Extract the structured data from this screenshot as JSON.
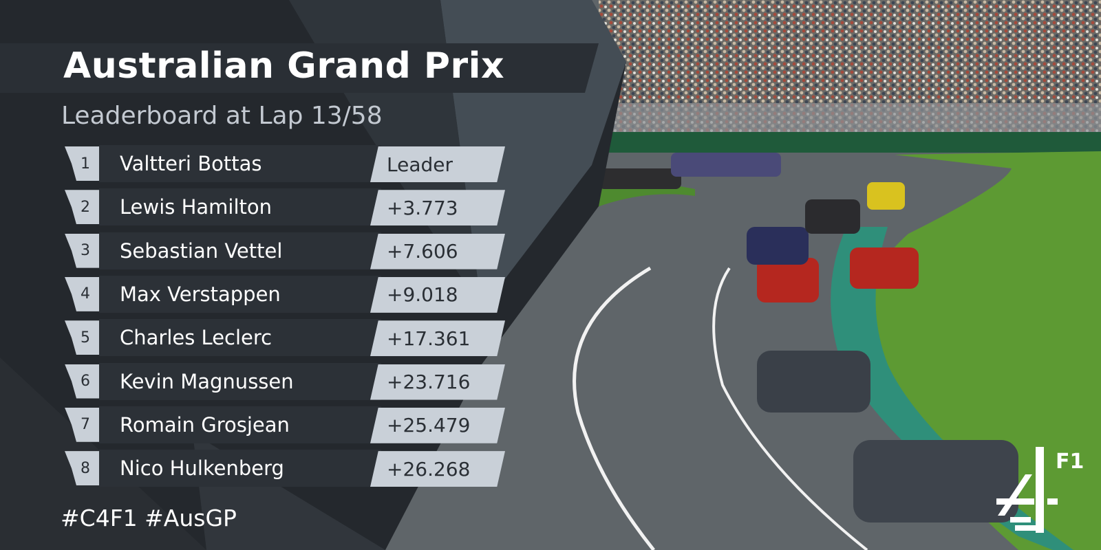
{
  "header": {
    "title": "Australian Grand Prix",
    "subtitle": "Leaderboard at Lap 13/58"
  },
  "table": {
    "rows": [
      [
        1,
        "Valtteri Bottas",
        "Leader"
      ],
      [
        2,
        "Lewis Hamilton",
        "+3.773"
      ],
      [
        3,
        "Sebastian Vettel",
        "+7.606"
      ],
      [
        4,
        "Max Verstappen",
        "+9.018"
      ],
      [
        5,
        "Charles Leclerc",
        "+17.361"
      ],
      [
        6,
        "Kevin Magnussen",
        "+23.716"
      ],
      [
        7,
        "Romain Grosjean",
        "+25.479"
      ],
      [
        8,
        "Nico Hulkenberg",
        "+26.268"
      ]
    ]
  },
  "footer": {
    "hashtag": "#C4F1 #AusGP"
  },
  "logo": {
    "label": "F1"
  }
}
